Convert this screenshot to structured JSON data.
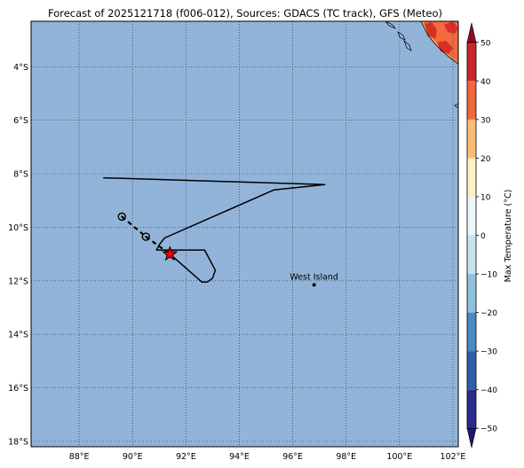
{
  "title": "Forecast of 2025121718 (f006-012), Sources: GDACS (TC track), GFS (Meteo)",
  "map": {
    "lon_range": [
      86.2,
      102.2
    ],
    "lat_range": [
      -18.2,
      -2.3
    ],
    "ocean_color": "#92b4d8",
    "grid_style": "dotted",
    "lat_ticks": [
      {
        "value": -4,
        "label": "4°S"
      },
      {
        "value": -6,
        "label": "6°S"
      },
      {
        "value": -8,
        "label": "8°S"
      },
      {
        "value": -10,
        "label": "10°S"
      },
      {
        "value": -12,
        "label": "12°S"
      },
      {
        "value": -14,
        "label": "14°S"
      },
      {
        "value": -16,
        "label": "16°S"
      },
      {
        "value": -18,
        "label": "18°S"
      }
    ],
    "lon_ticks": [
      {
        "value": 88,
        "label": "88°E"
      },
      {
        "value": 90,
        "label": "90°E"
      },
      {
        "value": 92,
        "label": "92°E"
      },
      {
        "value": 94,
        "label": "94°E"
      },
      {
        "value": 96,
        "label": "96°E"
      },
      {
        "value": 98,
        "label": "98°E"
      },
      {
        "value": 100,
        "label": "100°E"
      },
      {
        "value": 102,
        "label": "102°E"
      }
    ]
  },
  "track": {
    "past_points": [
      {
        "lon": 89.6,
        "lat": -9.6
      },
      {
        "lon": 90.5,
        "lat": -10.35
      }
    ],
    "current_position": {
      "lon": 91.4,
      "lat": -11.0
    },
    "marker_color": "#ff0000",
    "cone_outline": [
      {
        "lon": 88.9,
        "lat": -8.15
      },
      {
        "lon": 97.2,
        "lat": -8.4
      },
      {
        "lon": 95.3,
        "lat": -8.6
      },
      {
        "lon": 91.2,
        "lat": -10.4
      },
      {
        "lon": 91.0,
        "lat": -10.65
      },
      {
        "lon": 90.9,
        "lat": -10.85
      },
      {
        "lon": 91.4,
        "lat": -10.85
      },
      {
        "lon": 92.7,
        "lat": -10.85
      },
      {
        "lon": 93.1,
        "lat": -11.6
      },
      {
        "lon": 93.0,
        "lat": -11.9
      },
      {
        "lon": 92.8,
        "lat": -12.05
      },
      {
        "lon": 92.6,
        "lat": -12.05
      },
      {
        "lon": 91.4,
        "lat": -11.0
      }
    ]
  },
  "places": [
    {
      "name": "West Island",
      "lon": 96.8,
      "lat": -12.15
    }
  ],
  "colorbar": {
    "label": "Max Temperature (°C)",
    "ticks": [
      "50",
      "40",
      "30",
      "20",
      "10",
      "0",
      "−10",
      "−20",
      "−30",
      "−40",
      "−50"
    ],
    "tick_values": [
      50,
      40,
      30,
      20,
      10,
      0,
      -10,
      -20,
      -30,
      -40,
      -50
    ],
    "range": [
      -55,
      55
    ],
    "bins": [
      {
        "from": -55,
        "to": -50,
        "color": "#24186e"
      },
      {
        "from": -50,
        "to": -40,
        "color": "#2b2b8c"
      },
      {
        "from": -40,
        "to": -30,
        "color": "#2f5fa8"
      },
      {
        "from": -30,
        "to": -20,
        "color": "#4a89c2"
      },
      {
        "from": -20,
        "to": -10,
        "color": "#8ec1db"
      },
      {
        "from": -10,
        "to": 0,
        "color": "#c6e4ef"
      },
      {
        "from": 0,
        "to": 10,
        "color": "#ebf6f9"
      },
      {
        "from": 10,
        "to": 20,
        "color": "#fdf0c2"
      },
      {
        "from": 20,
        "to": 30,
        "color": "#fbbd74"
      },
      {
        "from": 30,
        "to": 40,
        "color": "#f0673e"
      },
      {
        "from": 40,
        "to": 50,
        "color": "#c9272a"
      },
      {
        "from": 50,
        "to": 55,
        "color": "#8e0b27"
      }
    ]
  },
  "land_colors": {
    "warm": "#f26a3e",
    "hot": "#d73027",
    "mild": "#fdae61"
  }
}
